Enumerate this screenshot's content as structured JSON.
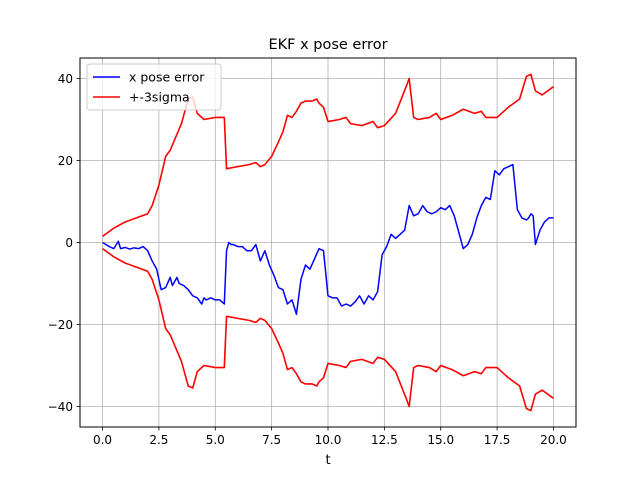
{
  "chart_data": {
    "type": "line",
    "title": "EKF x pose error",
    "xlabel": "t",
    "ylabel": "",
    "xlim": [
      -1.0,
      21.0
    ],
    "ylim": [
      -45.0,
      45.0
    ],
    "xticks": [
      0.0,
      2.5,
      5.0,
      7.5,
      10.0,
      12.5,
      15.0,
      17.5,
      20.0
    ],
    "xtick_labels": [
      "0.0",
      "2.5",
      "5.0",
      "7.5",
      "10.0",
      "12.5",
      "15.0",
      "17.5",
      "20.0"
    ],
    "yticks": [
      -40,
      -20,
      0,
      20,
      40
    ],
    "ytick_labels": [
      "−40",
      "−20",
      "0",
      "20",
      "40"
    ],
    "grid": true,
    "legend_position": "upper-left",
    "colors": {
      "error": "#0000ff",
      "sigma": "#ff0000",
      "grid": "#b0b0b0"
    },
    "series": [
      {
        "name": "x pose error",
        "color": "#0000ff",
        "x": [
          0.0,
          0.3,
          0.5,
          0.7,
          0.8,
          1.0,
          1.2,
          1.4,
          1.6,
          1.8,
          2.0,
          2.2,
          2.4,
          2.6,
          2.8,
          3.0,
          3.1,
          3.2,
          3.3,
          3.4,
          3.6,
          3.8,
          4.0,
          4.2,
          4.4,
          4.5,
          4.6,
          4.8,
          5.0,
          5.2,
          5.4,
          5.5,
          5.6,
          5.7,
          5.8,
          6.0,
          6.2,
          6.4,
          6.6,
          6.8,
          7.0,
          7.2,
          7.4,
          7.6,
          7.8,
          8.0,
          8.2,
          8.4,
          8.6,
          8.8,
          9.0,
          9.2,
          9.4,
          9.6,
          9.8,
          10.0,
          10.2,
          10.4,
          10.6,
          10.8,
          11.0,
          11.2,
          11.4,
          11.6,
          11.8,
          12.0,
          12.2,
          12.4,
          12.6,
          12.8,
          13.0,
          13.2,
          13.4,
          13.6,
          13.8,
          14.0,
          14.2,
          14.4,
          14.6,
          14.8,
          15.0,
          15.2,
          15.4,
          15.6,
          15.8,
          16.0,
          16.2,
          16.4,
          16.6,
          16.8,
          17.0,
          17.2,
          17.4,
          17.6,
          17.8,
          18.0,
          18.2,
          18.4,
          18.6,
          18.8,
          18.9,
          19.0,
          19.1,
          19.2,
          19.4,
          19.6,
          19.8,
          20.0
        ],
        "y": [
          0.0,
          -1.0,
          -1.5,
          0.3,
          -1.5,
          -1.2,
          -1.6,
          -1.3,
          -1.5,
          -1.0,
          -2.0,
          -4.5,
          -6.5,
          -11.5,
          -11.0,
          -8.5,
          -10.5,
          -9.5,
          -8.5,
          -10.0,
          -10.5,
          -11.5,
          -13.0,
          -13.5,
          -15.0,
          -13.5,
          -14.0,
          -13.5,
          -14.0,
          -14.0,
          -15.0,
          -2.0,
          0.0,
          -0.5,
          -0.5,
          -1.0,
          -1.0,
          -2.0,
          -2.0,
          -0.5,
          -4.5,
          -2.0,
          -5.5,
          -8.0,
          -11.0,
          -11.5,
          -15.0,
          -14.0,
          -17.5,
          -9.0,
          -5.5,
          -6.5,
          -4.0,
          -1.5,
          -2.0,
          -13.0,
          -13.5,
          -13.5,
          -15.5,
          -15.0,
          -15.5,
          -14.5,
          -13.0,
          -15.0,
          -13.0,
          -14.0,
          -12.0,
          -3.0,
          -1.0,
          2.0,
          1.0,
          2.0,
          3.0,
          9.0,
          6.5,
          7.0,
          9.0,
          7.5,
          7.0,
          7.5,
          8.5,
          8.0,
          9.0,
          6.5,
          2.5,
          -1.5,
          -0.5,
          2.0,
          6.0,
          9.0,
          11.0,
          10.5,
          17.5,
          16.5,
          18.0,
          18.5,
          19.0,
          8.0,
          6.0,
          5.5,
          6.0,
          7.0,
          6.5,
          -0.5,
          3.0,
          5.0,
          6.0,
          6.0
        ]
      },
      {
        "name": "+-3sigma",
        "color": "#ff0000",
        "x": [
          0.0,
          0.5,
          1.0,
          1.5,
          2.0,
          2.2,
          2.5,
          2.8,
          3.0,
          3.5,
          3.8,
          4.0,
          4.2,
          4.5,
          5.0,
          5.4,
          5.5,
          6.0,
          6.5,
          6.8,
          7.0,
          7.2,
          7.5,
          7.8,
          8.0,
          8.2,
          8.4,
          8.6,
          8.8,
          9.0,
          9.3,
          9.5,
          9.6,
          9.8,
          10.0,
          10.5,
          10.8,
          11.0,
          11.5,
          12.0,
          12.2,
          12.5,
          13.0,
          13.5,
          13.6,
          13.8,
          14.0,
          14.5,
          14.8,
          15.0,
          15.5,
          16.0,
          16.5,
          16.8,
          17.0,
          17.5,
          17.8,
          18.0,
          18.5,
          18.8,
          19.0,
          19.2,
          19.5,
          20.0
        ],
        "y": [
          1.5,
          3.5,
          5.0,
          6.0,
          7.0,
          9.0,
          14.0,
          21.0,
          22.5,
          29.0,
          35.0,
          35.5,
          31.5,
          30.0,
          30.5,
          30.5,
          18.0,
          18.5,
          19.0,
          19.5,
          18.5,
          19.0,
          21.0,
          24.5,
          27.0,
          31.0,
          30.5,
          32.0,
          34.0,
          34.5,
          34.5,
          35.0,
          34.0,
          33.0,
          29.5,
          30.0,
          30.5,
          29.0,
          28.5,
          29.5,
          28.0,
          28.5,
          31.5,
          38.5,
          40.0,
          30.5,
          30.0,
          30.5,
          31.5,
          30.0,
          31.0,
          32.5,
          31.5,
          32.0,
          30.5,
          30.5,
          32.0,
          33.0,
          35.0,
          40.5,
          41.0,
          37.0,
          36.0,
          38.0
        ],
        "mirrored": true
      }
    ]
  }
}
